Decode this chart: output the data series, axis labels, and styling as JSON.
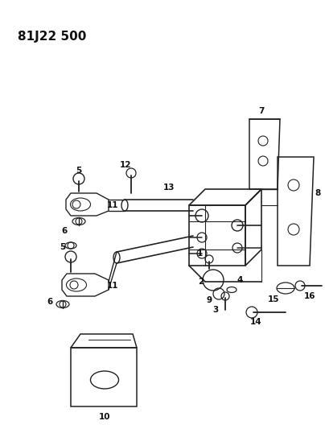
{
  "title": "81J22 500",
  "bg_color": "#ffffff",
  "line_color": "#222222",
  "label_color": "#111111",
  "fig_width": 4.04,
  "fig_height": 5.33,
  "dpi": 100
}
